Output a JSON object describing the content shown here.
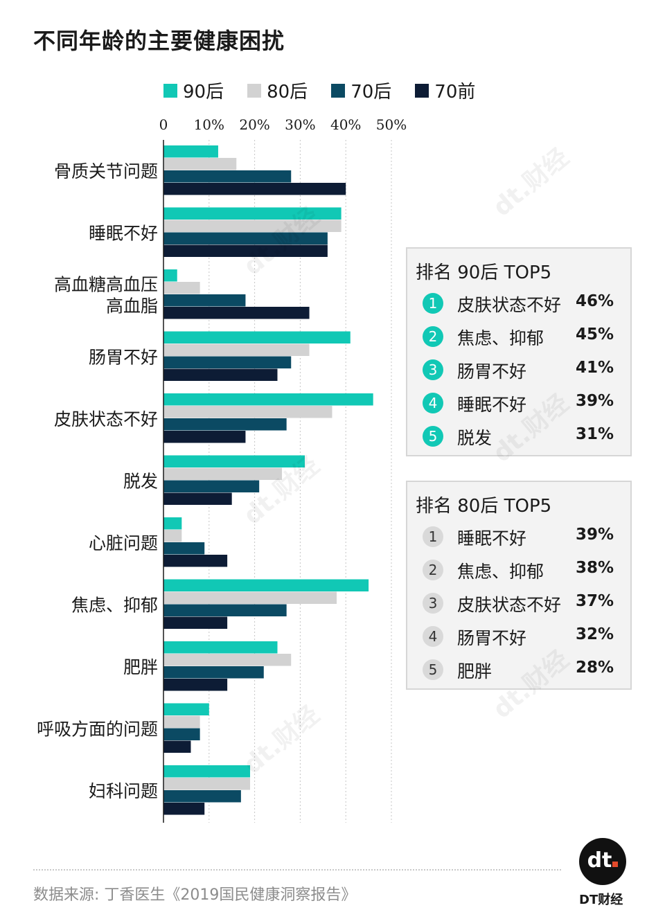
{
  "title": "不同年龄的主要健康困扰",
  "legend": [
    {
      "name": "90后",
      "color": "#11c8b5"
    },
    {
      "name": "80后",
      "color": "#d2d2d2"
    },
    {
      "name": "70后",
      "color": "#0b4a63"
    },
    {
      "name": "70前",
      "color": "#0d1c35"
    }
  ],
  "chart_data": {
    "type": "bar",
    "orientation": "horizontal",
    "categories": [
      "骨质关节问题",
      "睡眠不好",
      "高血糖高血压高血脂",
      "肠胃不好",
      "皮肤状态不好",
      "脱发",
      "心脏问题",
      "焦虑、抑郁",
      "肥胖",
      "呼吸方面的问题",
      "妇科问题"
    ],
    "series": [
      {
        "name": "90后",
        "values": [
          12,
          39,
          3,
          41,
          46,
          31,
          4,
          45,
          25,
          10,
          19
        ]
      },
      {
        "name": "80后",
        "values": [
          16,
          39,
          8,
          32,
          37,
          26,
          4,
          38,
          28,
          8,
          19
        ]
      },
      {
        "name": "70后",
        "values": [
          28,
          36,
          18,
          28,
          27,
          21,
          9,
          27,
          22,
          8,
          17
        ]
      },
      {
        "name": "70前",
        "values": [
          40,
          36,
          32,
          25,
          18,
          15,
          14,
          14,
          14,
          6,
          9
        ]
      }
    ],
    "xlim": [
      0,
      50
    ],
    "xticks": [
      "0",
      "10%",
      "20%",
      "30%",
      "40%",
      "50%"
    ],
    "grid": true,
    "legend_position": "top"
  },
  "category_labels": [
    [
      "骨质关节问题"
    ],
    [
      "睡眠不好"
    ],
    [
      "高血糖高血压",
      "高血脂"
    ],
    [
      "肠胃不好"
    ],
    [
      "皮肤状态不好"
    ],
    [
      "脱发"
    ],
    [
      "心脏问题"
    ],
    [
      "焦虑、抑郁"
    ],
    [
      "肥胖"
    ],
    [
      "呼吸方面的问题"
    ],
    [
      "妇科问题"
    ]
  ],
  "top5_90": {
    "title": "排名 90后 TOP5",
    "items": [
      {
        "rank": "1",
        "name": "皮肤状态不好",
        "pct": "46%"
      },
      {
        "rank": "2",
        "name": "焦虑、抑郁",
        "pct": "45%"
      },
      {
        "rank": "3",
        "name": "肠胃不好",
        "pct": "41%"
      },
      {
        "rank": "4",
        "name": "睡眠不好",
        "pct": "39%"
      },
      {
        "rank": "5",
        "name": "脱发",
        "pct": "31%"
      }
    ]
  },
  "top5_80": {
    "title": "排名 80后 TOP5",
    "items": [
      {
        "rank": "1",
        "name": "睡眠不好",
        "pct": "39%"
      },
      {
        "rank": "2",
        "name": "焦虑、抑郁",
        "pct": "38%"
      },
      {
        "rank": "3",
        "name": "皮肤状态不好",
        "pct": "37%"
      },
      {
        "rank": "4",
        "name": "肠胃不好",
        "pct": "32%"
      },
      {
        "rank": "5",
        "name": "肥胖",
        "pct": "28%"
      }
    ]
  },
  "source": "数据来源: 丁香医生《2019国民健康洞察报告》",
  "brand": {
    "logo_text": "dt",
    "name": "DT财经",
    "watermark": "dt.财经"
  }
}
